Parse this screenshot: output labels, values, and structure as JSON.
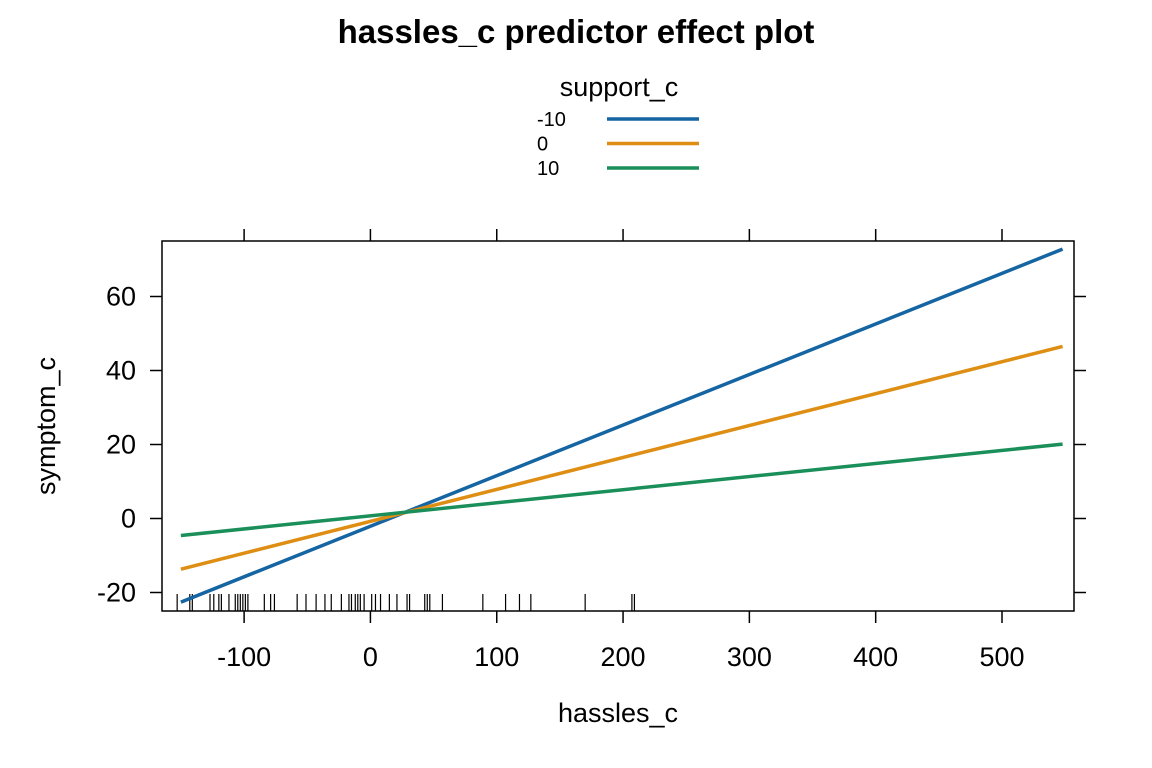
{
  "chart_data": {
    "type": "line",
    "title": "hassles_c predictor effect plot",
    "xlabel": "hassles_c",
    "ylabel": "symptom_c",
    "xlim": [
      -165,
      557
    ],
    "ylim": [
      -25,
      75
    ],
    "x_ticks": [
      -100,
      0,
      100,
      200,
      300,
      400,
      500
    ],
    "y_ticks": [
      -20,
      0,
      20,
      40,
      60
    ],
    "legend_title": "support_c",
    "legend_position": "top-center",
    "grid": false,
    "series": [
      {
        "name": "-10",
        "color": "#1565a3",
        "x": [
          -150,
          548
        ],
        "y": [
          -22.6,
          72.8
        ]
      },
      {
        "name": "0",
        "color": "#df8e14",
        "x": [
          -150,
          548
        ],
        "y": [
          -13.7,
          46.5
        ]
      },
      {
        "name": "10",
        "color": "#1a8f5a",
        "x": [
          -150,
          548
        ],
        "y": [
          -4.6,
          20.1
        ]
      }
    ],
    "rug_x": [
      -153,
      -143,
      -141,
      -127,
      -124,
      -120,
      -118,
      -112,
      -107,
      -105,
      -103,
      -101,
      -99,
      -97,
      -84,
      -79,
      -76,
      -58,
      -51,
      -43,
      -36,
      -31,
      -23,
      -17,
      -15,
      -12,
      -10,
      -8,
      -5,
      1,
      4,
      8,
      15,
      21,
      29,
      31,
      43,
      45,
      47,
      57,
      89,
      107,
      118,
      127,
      170,
      207,
      209
    ]
  }
}
